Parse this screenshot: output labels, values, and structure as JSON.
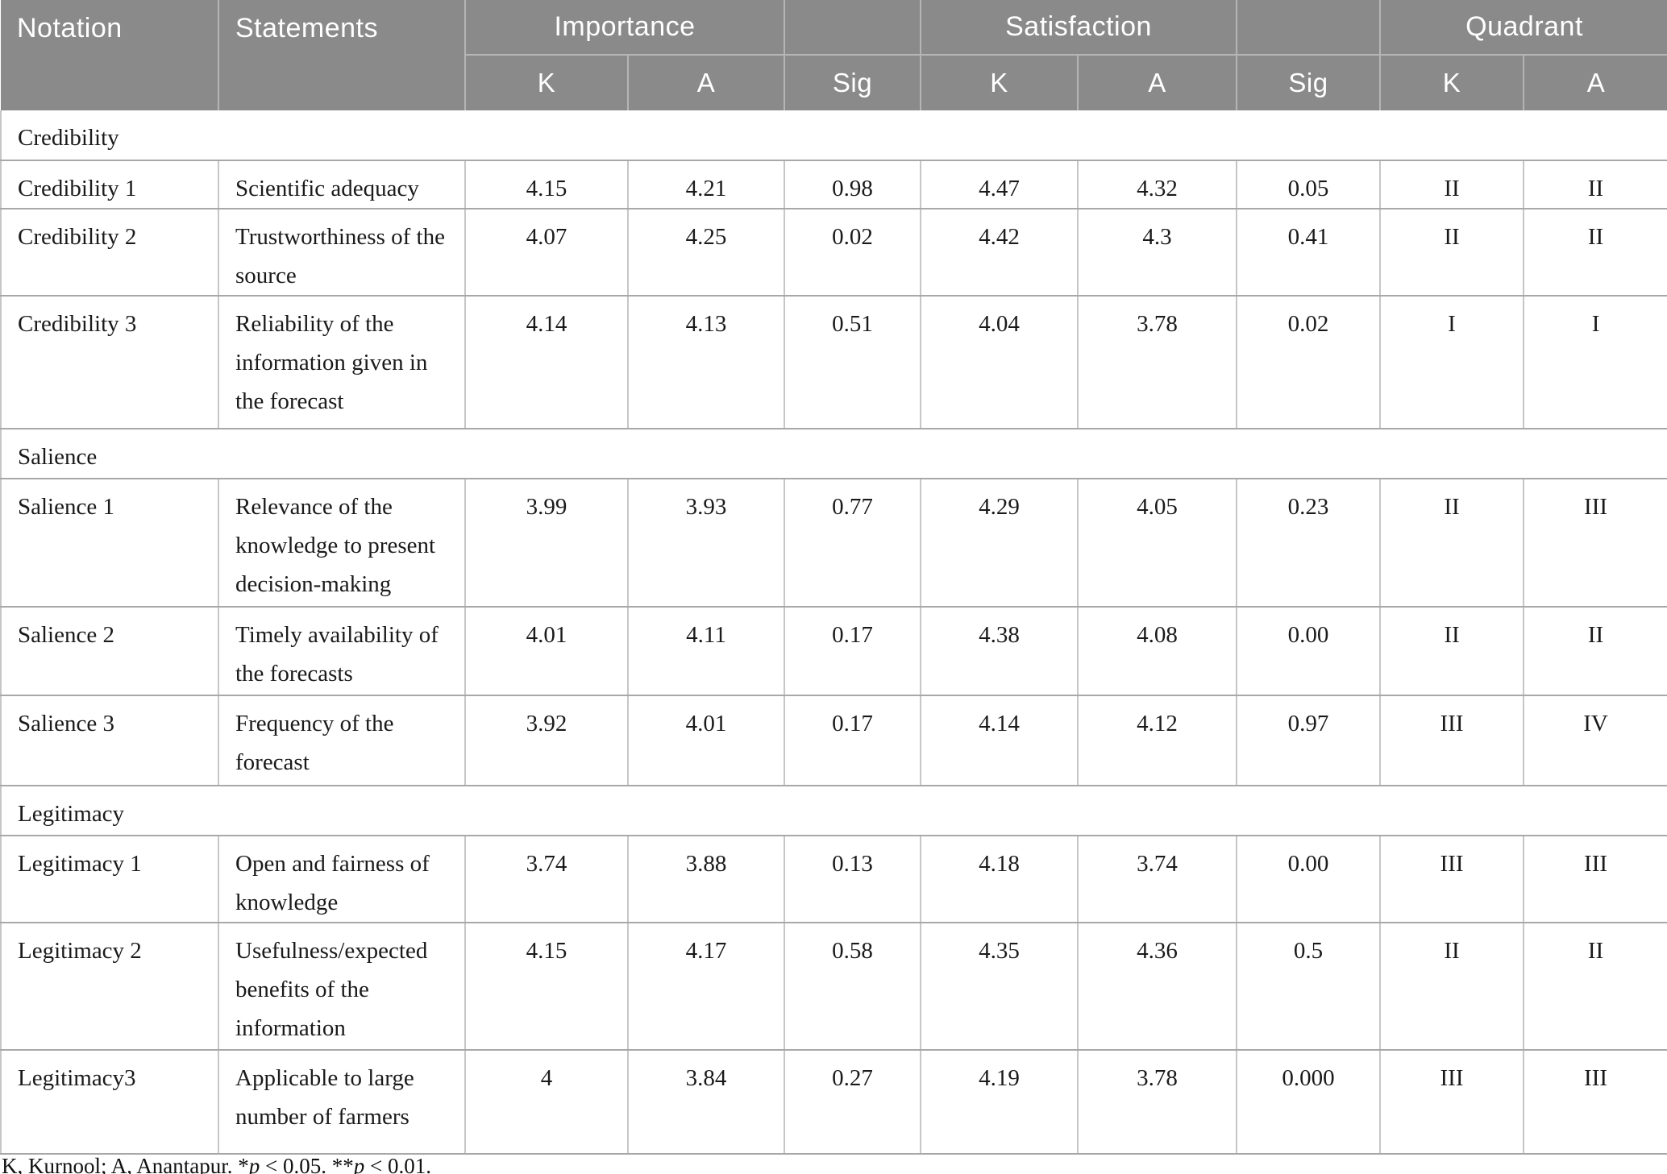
{
  "header": {
    "notation": "Notation",
    "statements": "Statements",
    "groups": {
      "importance": "Importance",
      "satisfaction": "Satisfaction",
      "quadrant": "Quadrant"
    },
    "subcols": {
      "k": "K",
      "a": "A",
      "sig": "Sig"
    }
  },
  "sections": [
    {
      "category": "Credibility",
      "rows": [
        {
          "notation": "Credibility 1",
          "statement": "Scientific adequacy",
          "importance_k": "4.15",
          "importance_a": "4.21",
          "importance_sig": "0.98",
          "satisfaction_k": "4.47",
          "satisfaction_a": "4.32",
          "satisfaction_sig": "0.05",
          "quadrant_k": "II",
          "quadrant_a": "II"
        },
        {
          "notation": "Credibility 2",
          "statement": "Trustworthiness of the source",
          "importance_k": "4.07",
          "importance_a": "4.25",
          "importance_sig": "0.02",
          "satisfaction_k": "4.42",
          "satisfaction_a": "4.3",
          "satisfaction_sig": "0.41",
          "quadrant_k": "II",
          "quadrant_a": "II"
        },
        {
          "notation": "Credibility 3",
          "statement": "Reliability of the information given in the forecast",
          "importance_k": "4.14",
          "importance_a": "4.13",
          "importance_sig": "0.51",
          "satisfaction_k": "4.04",
          "satisfaction_a": "3.78",
          "satisfaction_sig": "0.02",
          "quadrant_k": "I",
          "quadrant_a": "I"
        }
      ]
    },
    {
      "category": "Salience",
      "rows": [
        {
          "notation": "Salience 1",
          "statement": "Relevance of the knowledge to present decision-making",
          "importance_k": "3.99",
          "importance_a": "3.93",
          "importance_sig": "0.77",
          "satisfaction_k": "4.29",
          "satisfaction_a": "4.05",
          "satisfaction_sig": "0.23",
          "quadrant_k": "II",
          "quadrant_a": "III"
        },
        {
          "notation": "Salience 2",
          "statement": "Timely availability of the forecasts",
          "importance_k": "4.01",
          "importance_a": "4.11",
          "importance_sig": "0.17",
          "satisfaction_k": "4.38",
          "satisfaction_a": "4.08",
          "satisfaction_sig": "0.00",
          "quadrant_k": "II",
          "quadrant_a": "II"
        },
        {
          "notation": "Salience 3",
          "statement": "Frequency of the forecast",
          "importance_k": "3.92",
          "importance_a": "4.01",
          "importance_sig": "0.17",
          "satisfaction_k": "4.14",
          "satisfaction_a": "4.12",
          "satisfaction_sig": "0.97",
          "quadrant_k": "III",
          "quadrant_a": "IV"
        }
      ]
    },
    {
      "category": "Legitimacy",
      "rows": [
        {
          "notation": "Legitimacy 1",
          "statement": "Open and fairness of knowledge",
          "importance_k": "3.74",
          "importance_a": "3.88",
          "importance_sig": "0.13",
          "satisfaction_k": "4.18",
          "satisfaction_a": "3.74",
          "satisfaction_sig": "0.00",
          "quadrant_k": "III",
          "quadrant_a": "III"
        },
        {
          "notation": "Legitimacy 2",
          "statement": "Usefulness/expected benefits of the information",
          "importance_k": "4.15",
          "importance_a": "4.17",
          "importance_sig": "0.58",
          "satisfaction_k": "4.35",
          "satisfaction_a": "4.36",
          "satisfaction_sig": "0.5",
          "quadrant_k": "II",
          "quadrant_a": "II"
        },
        {
          "notation": "Legitimacy3",
          "statement": "Applicable to large number of farmers",
          "importance_k": "4",
          "importance_a": "3.84",
          "importance_sig": "0.27",
          "satisfaction_k": "4.19",
          "satisfaction_a": "3.78",
          "satisfaction_sig": "0.000",
          "quadrant_k": "III",
          "quadrant_a": "III"
        }
      ]
    }
  ],
  "footnote": {
    "segments": [
      {
        "text": "K, Kurnool; A, Anantapur. *"
      },
      {
        "text": "p",
        "italic": true
      },
      {
        "text": " < 0.05. **"
      },
      {
        "text": "p",
        "italic": true
      },
      {
        "text": " < 0.01."
      }
    ]
  },
  "colors": {
    "header_bg": "#8a8a8a",
    "header_text": "#ffffff",
    "header_border": "#b5b5b5",
    "row_border_horizontal": "#a8a8a8",
    "row_border_vertical": "#c6c6c6",
    "body_text": "#1a1a1a"
  }
}
